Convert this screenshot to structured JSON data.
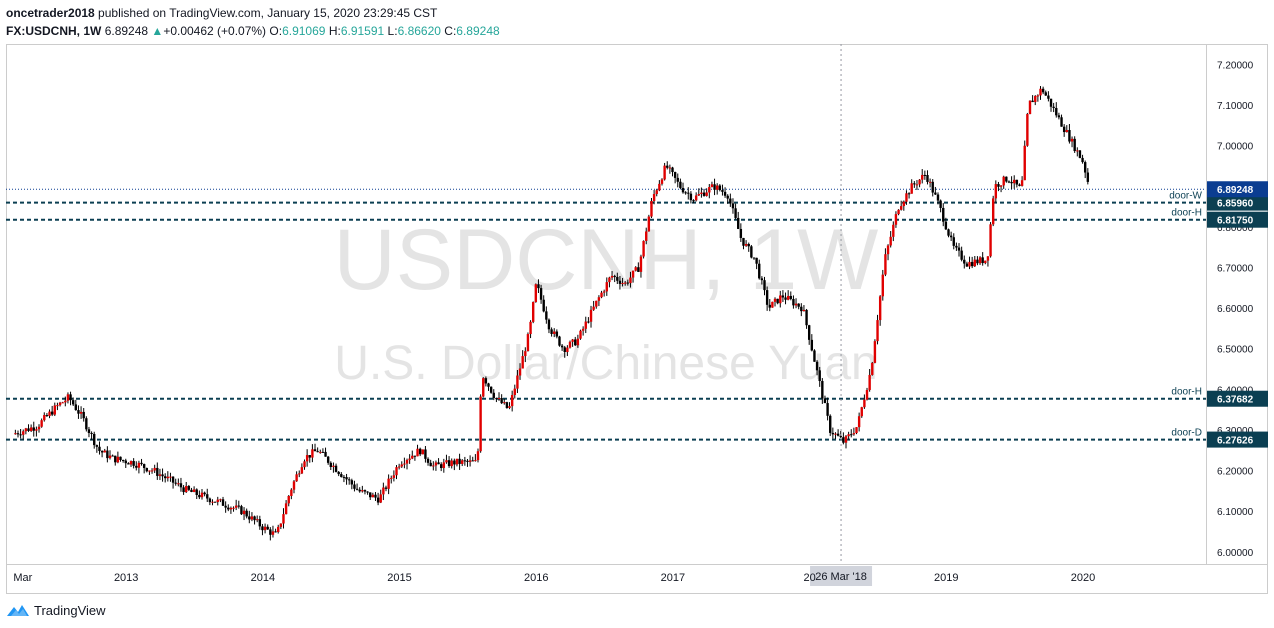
{
  "header": {
    "author": "oncetrader2018",
    "published_text": " published on TradingView.com, January 15, 2020 23:29:45 CST",
    "symbol": "FX:USDCNH, 1W",
    "last": "6.89248",
    "arrow": "▲",
    "change": "+0.00462 (+0.07%)",
    "o_label": "O:",
    "o_value": "6.91069",
    "h_label": "H:",
    "h_value": "6.91591",
    "l_label": "L:",
    "l_value": "6.86620",
    "c_label": "C:",
    "c_value": "6.89248"
  },
  "watermark": {
    "line1": "USDCNH, 1W",
    "line2": "U.S. Dollar/Chinese Yuan"
  },
  "footer": {
    "brand": "TradingView"
  },
  "colors": {
    "up": "#26a69a",
    "bear_candle": "#000000",
    "bull_candle": "#e00000",
    "level_line": "#0b3f52",
    "price_label_bg": "#0b3f52",
    "last_price_bg": "#0b3d91"
  },
  "chart_data": {
    "type": "candlestick",
    "ylim": [
      5.97,
      7.25
    ],
    "y_ticks": [
      "6.00000",
      "6.10000",
      "6.20000",
      "6.30000",
      "6.40000",
      "6.50000",
      "6.60000",
      "6.70000",
      "6.80000",
      "6.90000",
      "7.00000",
      "7.10000",
      "7.20000"
    ],
    "y_tick_values": [
      6.0,
      6.1,
      6.2,
      6.3,
      6.4,
      6.5,
      6.6,
      6.7,
      6.8,
      6.9,
      7.0,
      7.1,
      7.2
    ],
    "x_labels": [
      {
        "label": "Mar",
        "x": 2012.2
      },
      {
        "label": "2013",
        "x": 2013.0
      },
      {
        "label": "2014",
        "x": 2014.0
      },
      {
        "label": "2015",
        "x": 2015.0
      },
      {
        "label": "2016",
        "x": 2016.0
      },
      {
        "label": "2017",
        "x": 2017.0
      },
      {
        "label": "20",
        "x": 2018.0
      },
      {
        "label": "2019",
        "x": 2019.0
      },
      {
        "label": "2020",
        "x": 2020.0
      }
    ],
    "xlim": [
      2012.15,
      2020.9
    ],
    "crosshair": {
      "x": 2018.23,
      "label": "26 Mar '18"
    },
    "levels": [
      {
        "price": 6.8596,
        "label": "6.85960",
        "tag": "door-W"
      },
      {
        "price": 6.8175,
        "label": "6.81750",
        "tag": "door-H"
      },
      {
        "price": 6.37682,
        "label": "6.37682",
        "tag": "door-H"
      },
      {
        "price": 6.27626,
        "label": "6.27626",
        "tag": "door-D"
      }
    ],
    "last_price": {
      "price": 6.89248,
      "label": "6.89248"
    },
    "anchors": [
      [
        2012.17,
        6.29
      ],
      [
        2012.35,
        6.31
      ],
      [
        2012.5,
        6.36
      ],
      [
        2012.58,
        6.38
      ],
      [
        2012.68,
        6.33
      ],
      [
        2012.8,
        6.25
      ],
      [
        2012.9,
        6.23
      ],
      [
        2013.05,
        6.22
      ],
      [
        2013.2,
        6.2
      ],
      [
        2013.45,
        6.15
      ],
      [
        2013.7,
        6.12
      ],
      [
        2013.85,
        6.1
      ],
      [
        2014.0,
        6.06
      ],
      [
        2014.1,
        6.04
      ],
      [
        2014.2,
        6.15
      ],
      [
        2014.3,
        6.23
      ],
      [
        2014.4,
        6.25
      ],
      [
        2014.55,
        6.2
      ],
      [
        2014.7,
        6.15
      ],
      [
        2014.85,
        6.13
      ],
      [
        2015.0,
        6.22
      ],
      [
        2015.15,
        6.25
      ],
      [
        2015.25,
        6.21
      ],
      [
        2015.4,
        6.22
      ],
      [
        2015.57,
        6.22
      ],
      [
        2015.6,
        6.44
      ],
      [
        2015.7,
        6.38
      ],
      [
        2015.8,
        6.35
      ],
      [
        2015.95,
        6.54
      ],
      [
        2016.0,
        6.66
      ],
      [
        2016.1,
        6.55
      ],
      [
        2016.2,
        6.5
      ],
      [
        2016.3,
        6.52
      ],
      [
        2016.45,
        6.62
      ],
      [
        2016.55,
        6.68
      ],
      [
        2016.65,
        6.66
      ],
      [
        2016.75,
        6.7
      ],
      [
        2016.85,
        6.87
      ],
      [
        2016.95,
        6.95
      ],
      [
        2017.05,
        6.9
      ],
      [
        2017.15,
        6.87
      ],
      [
        2017.3,
        6.9
      ],
      [
        2017.4,
        6.88
      ],
      [
        2017.5,
        6.77
      ],
      [
        2017.6,
        6.72
      ],
      [
        2017.7,
        6.6
      ],
      [
        2017.8,
        6.63
      ],
      [
        2017.95,
        6.6
      ],
      [
        2018.05,
        6.45
      ],
      [
        2018.15,
        6.3
      ],
      [
        2018.25,
        6.27
      ],
      [
        2018.35,
        6.31
      ],
      [
        2018.45,
        6.45
      ],
      [
        2018.55,
        6.72
      ],
      [
        2018.65,
        6.85
      ],
      [
        2018.75,
        6.9
      ],
      [
        2018.85,
        6.93
      ],
      [
        2018.95,
        6.85
      ],
      [
        2019.05,
        6.75
      ],
      [
        2019.15,
        6.71
      ],
      [
        2019.3,
        6.72
      ],
      [
        2019.35,
        6.9
      ],
      [
        2019.45,
        6.92
      ],
      [
        2019.55,
        6.89
      ],
      [
        2019.6,
        7.1
      ],
      [
        2019.7,
        7.14
      ],
      [
        2019.8,
        7.08
      ],
      [
        2019.9,
        7.02
      ],
      [
        2020.0,
        6.96
      ],
      [
        2020.05,
        6.89248
      ]
    ]
  }
}
